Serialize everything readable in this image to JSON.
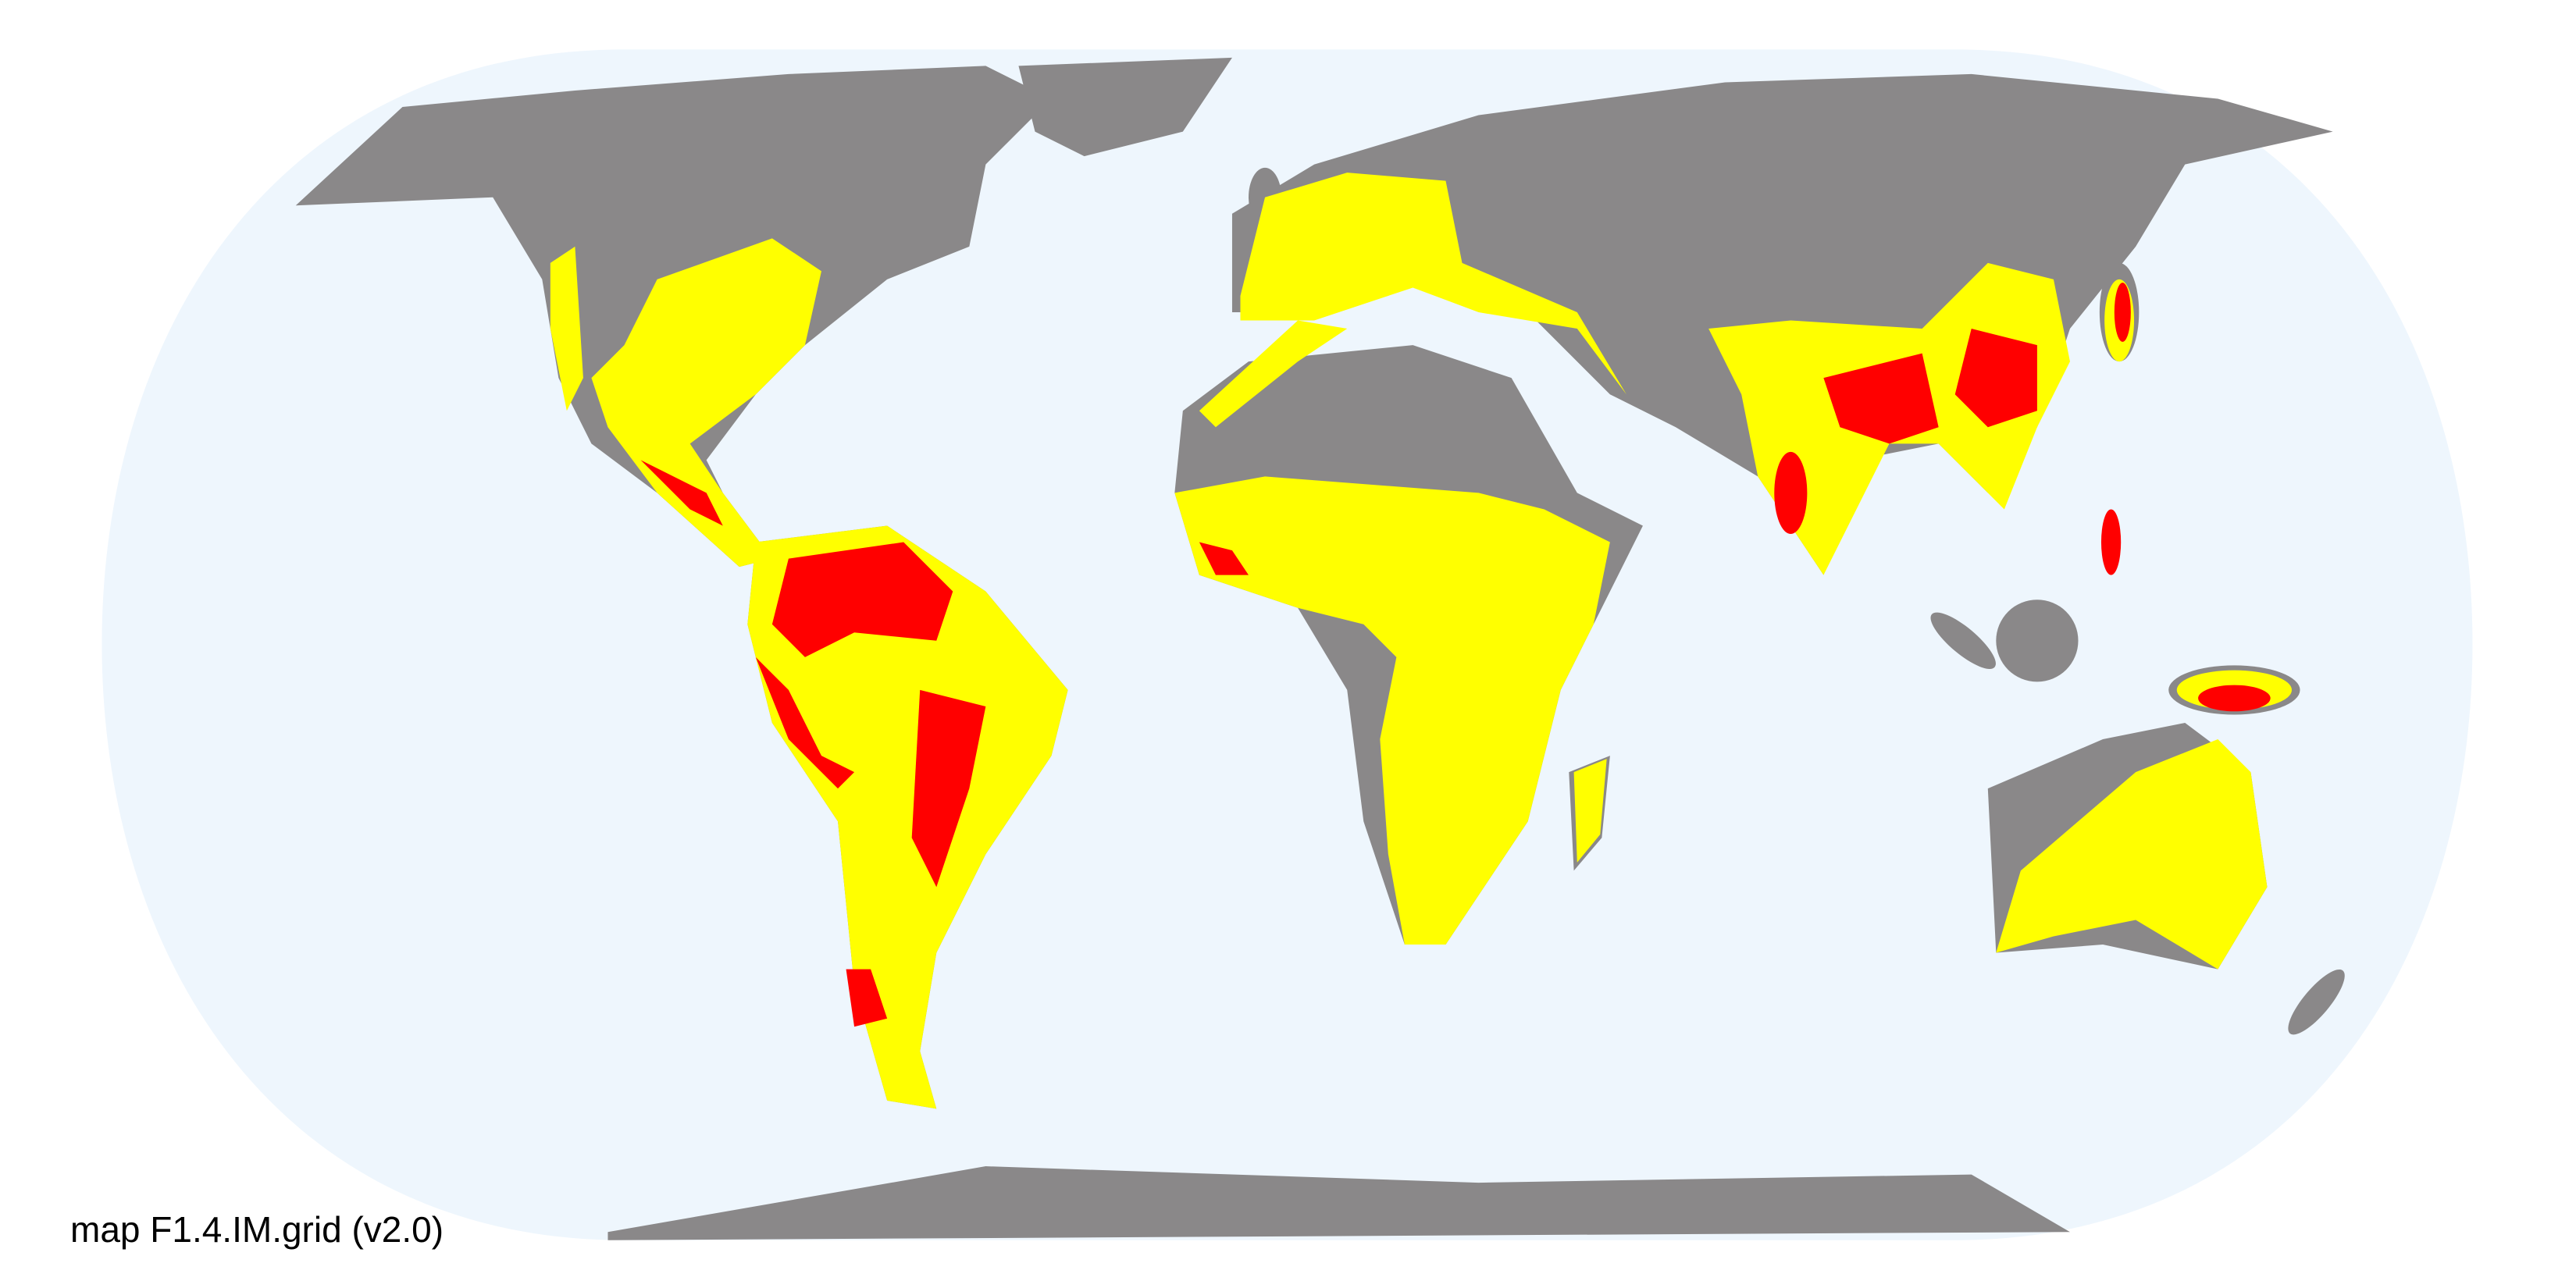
{
  "caption": "map F1.4.IM.grid (v2.0)",
  "colors": {
    "ocean": "#eef6fd",
    "land": "#8a8889",
    "category_low": "#ffff00",
    "category_high": "#ff0000",
    "background": "#ffffff"
  },
  "projection": "Equal Earth"
}
